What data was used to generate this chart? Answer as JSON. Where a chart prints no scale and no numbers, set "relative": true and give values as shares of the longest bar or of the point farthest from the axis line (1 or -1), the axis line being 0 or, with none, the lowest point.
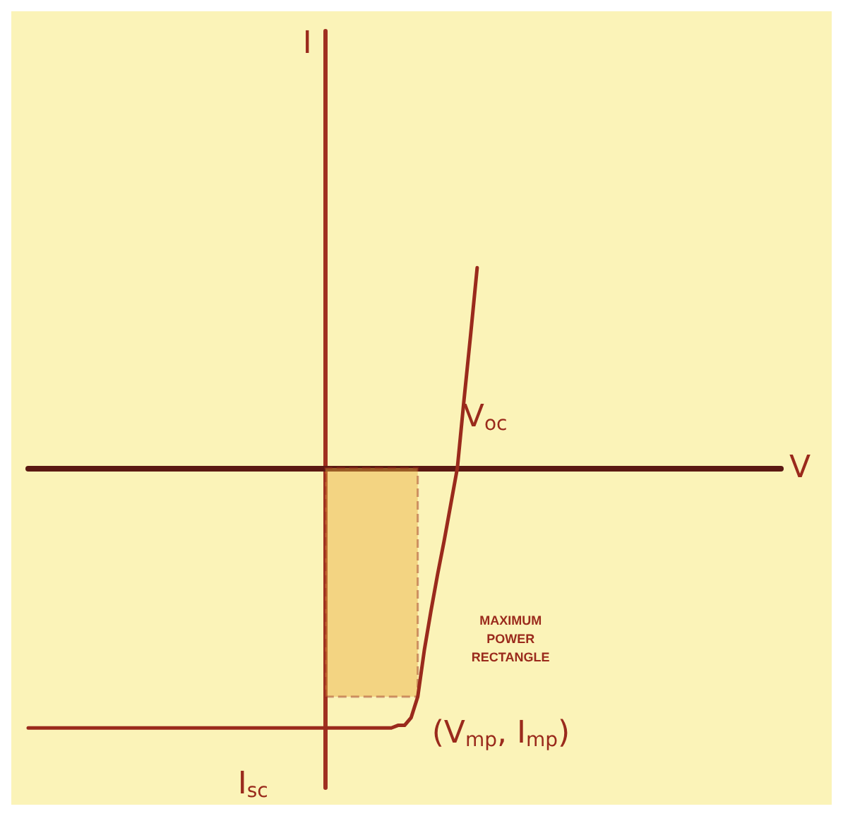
{
  "chart_data": {
    "type": "line",
    "relative": true,
    "xlabel": "V",
    "color": "#9a2a1c",
    "grid": false,
    "categories": [
      null,
      null,
      null,
      null,
      null,
      null,
      null,
      null,
      null,
      null,
      null,
      null,
      null,
      null,
      null,
      null,
      null,
      null,
      null,
      null,
      null,
      null,
      null,
      null,
      null,
      null,
      null,
      null,
      null,
      null,
      null,
      null,
      null,
      null,
      null,
      null,
      null,
      null,
      null,
      null,
      null,
      null,
      null,
      null,
      null,
      null,
      null,
      null,
      null,
      null,
      null,
      null,
      null,
      null,
      null,
      null,
      null,
      null,
      null,
      null,
      null,
      null,
      null,
      null,
      null,
      null,
      null,
      null,
      null,
      null,
      null,
      null,
      null,
      null,
      null,
      null,
      null,
      null,
      null,
      null,
      null,
      null,
      null,
      null,
      null,
      null,
      null,
      null,
      null,
      null,
      null,
      null,
      null,
      null,
      null,
      null,
      null,
      null,
      null,
      null,
      null,
      null,
      null,
      null,
      null,
      null,
      null,
      null,
      null,
      null,
      null,
      null,
      null,
      null,
      null
    ],
    "values": [
      -1,
      -1,
      -1,
      -1,
      -1,
      -1,
      -1,
      -1,
      -1,
      -1,
      -1,
      -1,
      -1,
      -1,
      -1,
      -1,
      -1,
      -1,
      -1,
      -1,
      -1,
      -1,
      -1,
      -1,
      -1,
      -1,
      -1,
      -1,
      -1,
      -1,
      -1,
      -1,
      -1,
      -1,
      -1,
      -1,
      -1,
      -1,
      -1,
      -1,
      -1,
      -1,
      -1,
      -1,
      -1,
      -1,
      -1,
      -1,
      -1,
      -1,
      -1,
      -1,
      -1,
      -1,
      -1,
      -1,
      -0.99,
      -0.99,
      -0.96,
      -0.88,
      -0.7,
      -0.55,
      -0.41,
      -0.28,
      -0.14,
      0,
      0.26,
      0.51,
      0.77,
      null,
      null,
      null,
      null,
      null,
      null,
      null,
      null,
      null,
      null,
      null,
      null,
      null,
      null,
      null,
      null,
      null,
      null,
      null,
      null,
      null,
      null,
      null,
      null,
      null,
      null,
      null,
      null,
      null,
      null,
      null,
      null,
      null,
      null,
      null,
      null,
      null,
      null,
      null,
      null,
      null,
      null,
      null,
      null,
      null,
      null
    ],
    "bands": [
      {
        "axis": "y",
        "from": -0.88,
        "to": 0,
        "label": "MAXIMUM POWER RECTANGLE",
        "color": "#e8b040"
      }
    ],
    "annotations": [
      "V$_{oc}$",
      "I$_{sc}$",
      "(V$_{mp}$, I$_{mp}$)",
      "I"
    ]
  }
}
